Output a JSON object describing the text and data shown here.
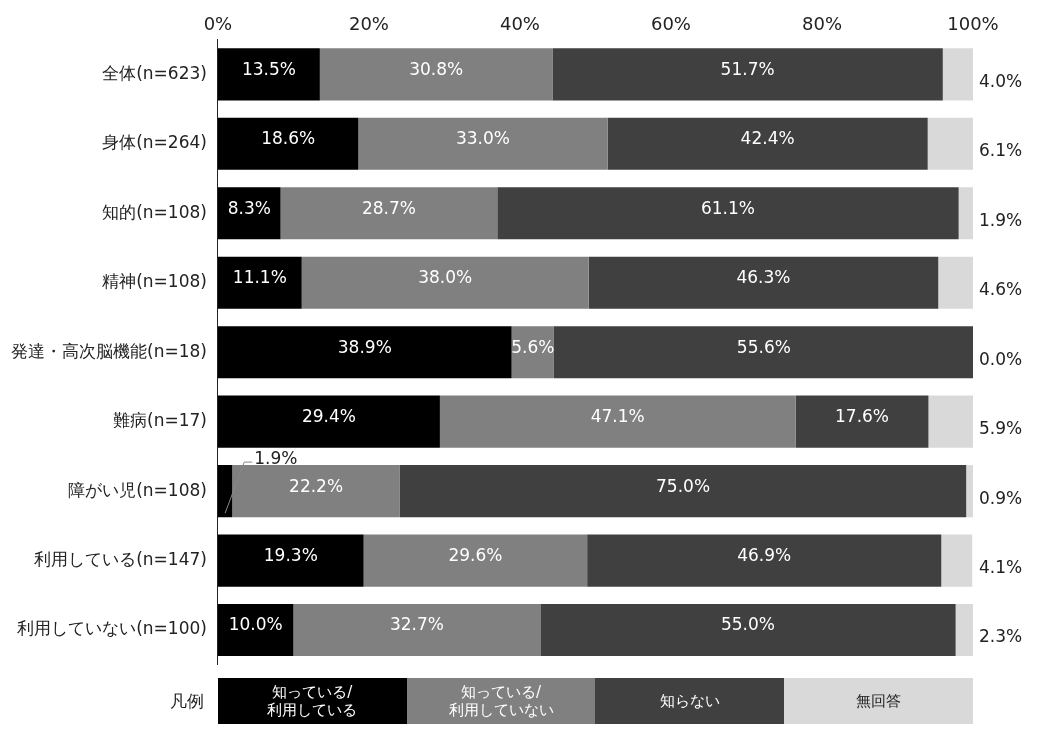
{
  "chart_data": {
    "type": "bar",
    "orientation": "horizontal",
    "stacked": true,
    "legend": "bottom",
    "legend_title": "凡例",
    "categories": [
      "全体(n=623)",
      "身体(n=264)",
      "知的(n=108)",
      "精神(n=108)",
      "発達・高次脳機能(n=18)",
      "難病(n=17)",
      "障がい児(n=108)",
      "利用している(n=147)",
      "利用していない(n=100)"
    ],
    "series": [
      {
        "name": "知っている/利用している",
        "color": "#000000",
        "values": [
          13.5,
          18.6,
          8.3,
          11.1,
          38.9,
          29.4,
          1.9,
          19.3,
          10.0
        ],
        "value_labels": [
          "13.5%",
          "18.6%",
          "8.3%",
          "11.1%",
          "38.9%",
          "29.4%",
          "1.9%",
          "19.3%",
          "10.0%"
        ]
      },
      {
        "name": "知っている/利用していない",
        "color": "#808080",
        "values": [
          30.8,
          33.0,
          28.7,
          38.0,
          5.6,
          47.1,
          22.2,
          29.6,
          32.7
        ],
        "value_labels": [
          "30.8%",
          "33.0%",
          "28.7%",
          "38.0%",
          "5.6%",
          "47.1%",
          "22.2%",
          "29.6%",
          "32.7%"
        ]
      },
      {
        "name": "知らない",
        "color": "#404040",
        "values": [
          51.7,
          42.4,
          61.1,
          46.3,
          55.6,
          17.6,
          75.0,
          46.9,
          55.0
        ],
        "value_labels": [
          "51.7%",
          "42.4%",
          "61.1%",
          "46.3%",
          "55.6%",
          "17.6%",
          "75.0%",
          "46.9%",
          "55.0%"
        ]
      },
      {
        "name": "無回答",
        "color": "#d9d9d9",
        "values": [
          4.0,
          6.1,
          1.9,
          4.6,
          0.0,
          5.9,
          0.9,
          4.1,
          2.3
        ],
        "value_labels": [
          "4.0%",
          "6.1%",
          "1.9%",
          "4.6%",
          "0.0%",
          "5.9%",
          "0.9%",
          "4.1%",
          "2.3%"
        ]
      }
    ],
    "xlim": [
      0,
      100
    ],
    "xticks": [
      {
        "value": 0,
        "label": "0%"
      },
      {
        "value": 20,
        "label": "20%"
      },
      {
        "value": 40,
        "label": "40%"
      },
      {
        "value": 60,
        "label": "60%"
      },
      {
        "value": 80,
        "label": "80%"
      },
      {
        "value": 100,
        "label": "100%"
      }
    ],
    "grid": false
  }
}
